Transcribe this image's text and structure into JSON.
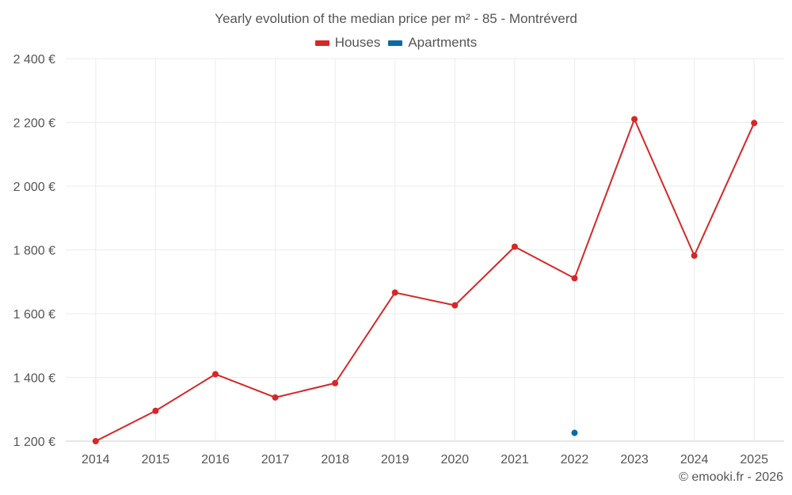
{
  "chart_data": {
    "type": "line",
    "title": "Yearly evolution of the median price per m² - 85 - Montréverd",
    "xlabel": "",
    "ylabel": "",
    "x": [
      "2014",
      "2015",
      "2016",
      "2017",
      "2018",
      "2019",
      "2020",
      "2021",
      "2022",
      "2023",
      "2024",
      "2025"
    ],
    "ylim": [
      1200,
      2400
    ],
    "yticks": [
      1200,
      1400,
      1600,
      1800,
      2000,
      2200,
      2400
    ],
    "ytick_labels": [
      "1 200 €",
      "1 400 €",
      "1 600 €",
      "1 800 €",
      "2 000 €",
      "2 200 €",
      "2 400 €"
    ],
    "grid": true,
    "legend_position": "top-center",
    "series": [
      {
        "name": "Houses",
        "color": "#d62728",
        "values": [
          1200,
          1295,
          1410,
          1337,
          1382,
          1666,
          1626,
          1810,
          1711,
          2210,
          1782,
          2198
        ]
      },
      {
        "name": "Apartments",
        "color": "#0b6aa2",
        "values": [
          null,
          null,
          null,
          null,
          null,
          null,
          null,
          null,
          1226,
          null,
          null,
          null
        ]
      }
    ]
  },
  "footer": {
    "credit": "© emooki.fr - 2026"
  }
}
